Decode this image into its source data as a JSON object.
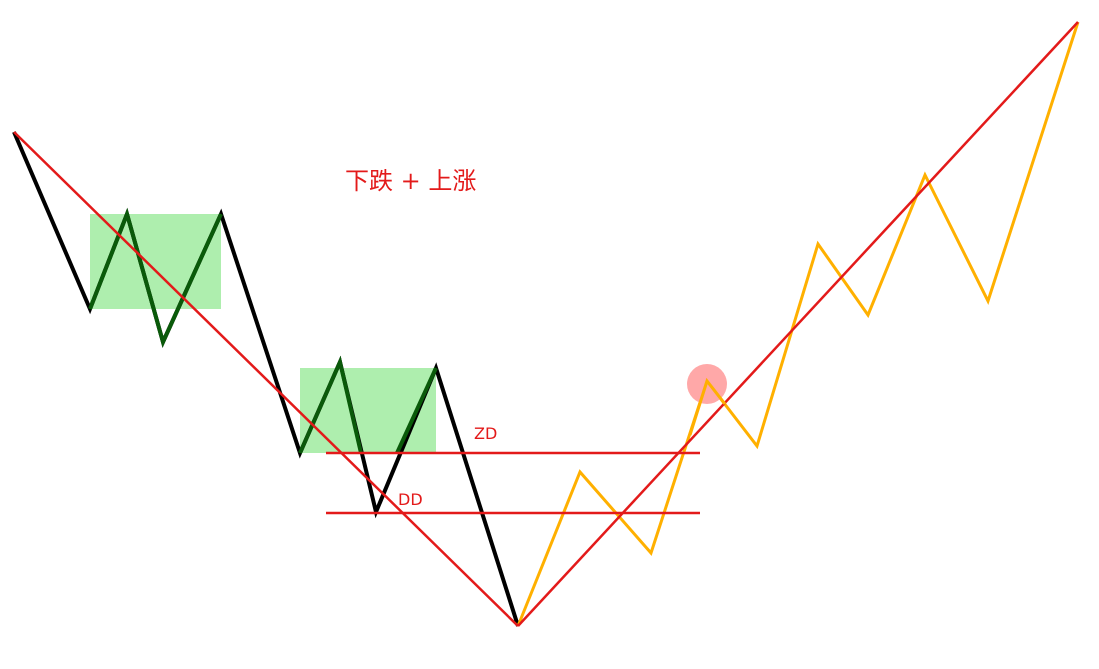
{
  "diagram": {
    "title": "下跌 + 上涨",
    "levels": {
      "zd_label": "ZD",
      "dd_label": "DD"
    },
    "colors": {
      "downtrend_line": "#000000",
      "overlap_segment": "#0a5a0a",
      "uptrend_line": "#ffb000",
      "trend_lines": "#e31a1a",
      "level_lines": "#e31a1a",
      "consolidation_box": "#aeeeae",
      "highlight_circle": "#ff9999",
      "label_text": "#e31a1a"
    }
  }
}
